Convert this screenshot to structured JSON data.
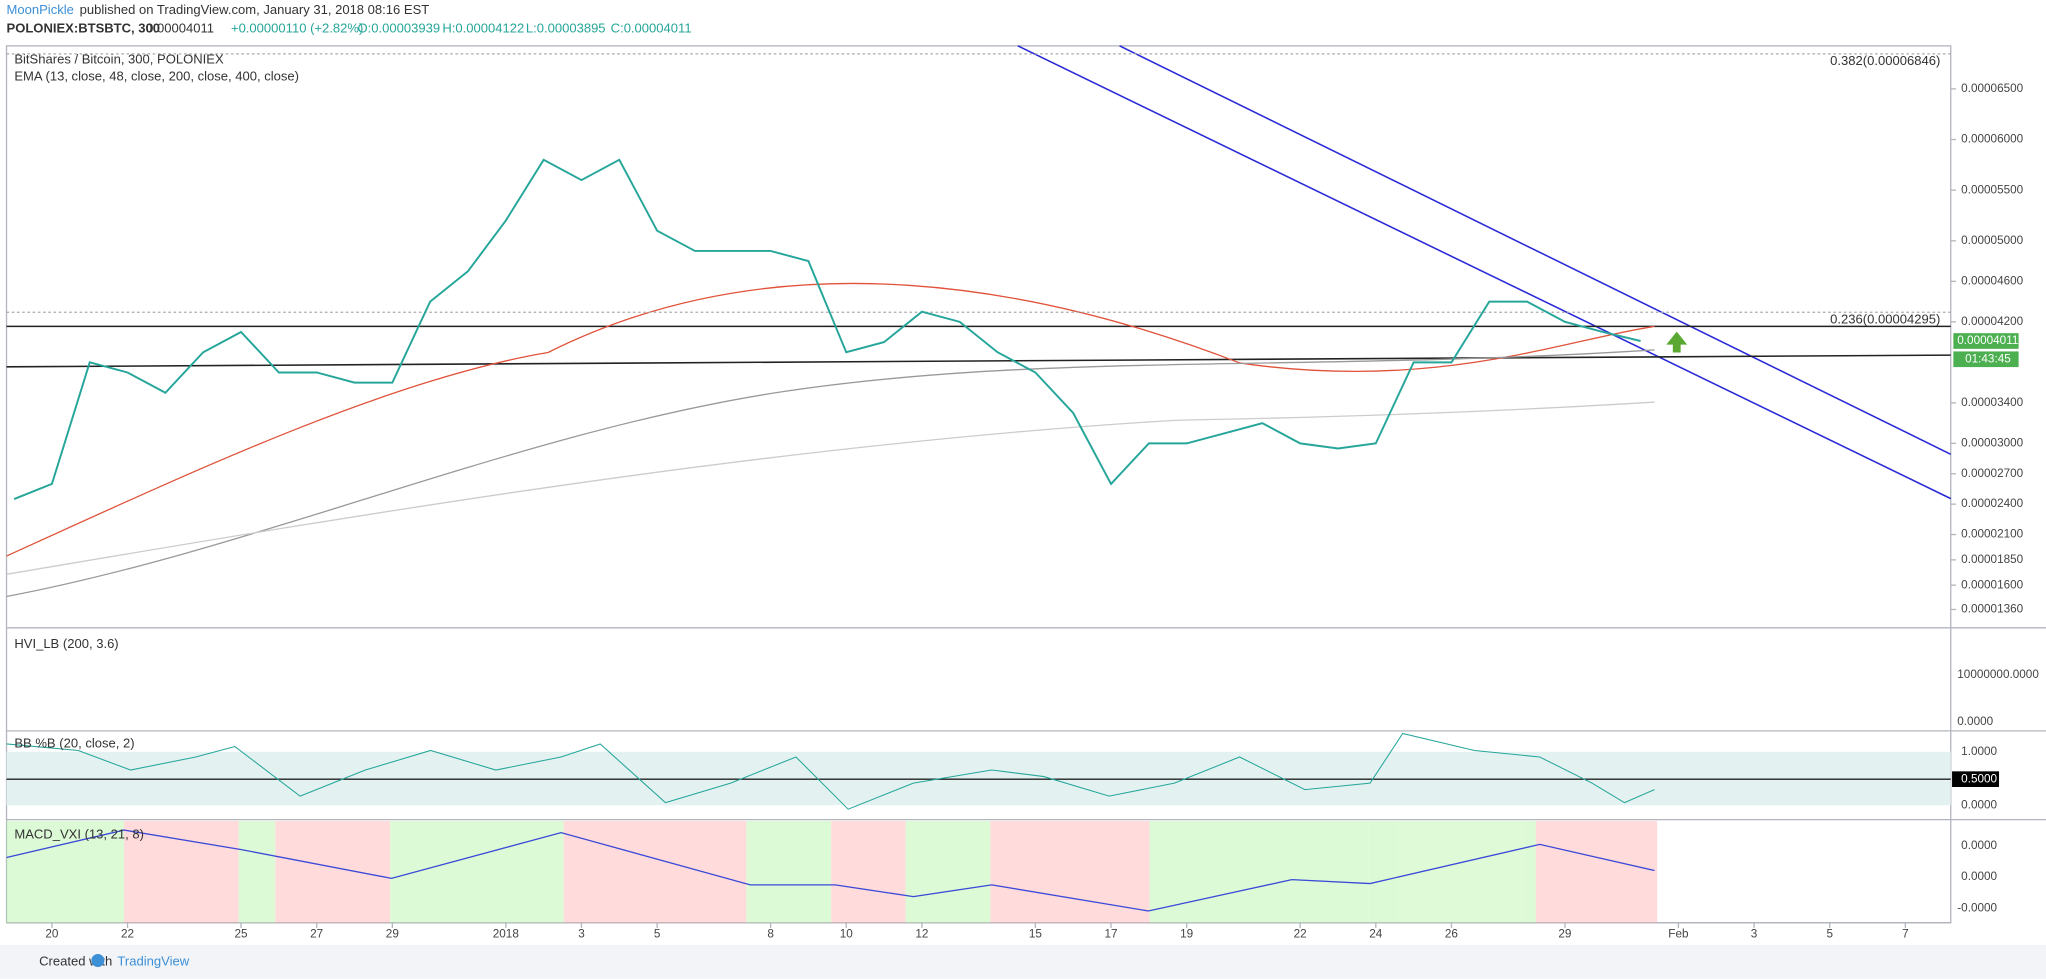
{
  "header": {
    "author": "MoonPickle",
    "published": "published on TradingView.com, January 31, 2018 08:16 EST",
    "symbol": "POLONIEX:BTSBTC, 300",
    "last": "0.00004011",
    "change": "+0.00000110 (+2.82%)",
    "open": "O:0.00003939",
    "high": "H:0.00004122",
    "low": "L:0.00003895",
    "close": "C:0.00004011"
  },
  "chart_data": {
    "type": "line",
    "title": "BitShares / Bitcoin, 300, POLONIEX",
    "subtitle": "EMA (13, close, 48, close, 200, close, 400, close)",
    "color": "#26a69a",
    "log": false,
    "grid": false,
    "x": [
      -1,
      0,
      1,
      2,
      3,
      4,
      5,
      6,
      7,
      8,
      9,
      10,
      11,
      12,
      13,
      14,
      15,
      16,
      17,
      18,
      19,
      20,
      21,
      22,
      23,
      24,
      25,
      26,
      27,
      28,
      29,
      30,
      31,
      32,
      33,
      34,
      35,
      36,
      37,
      38,
      39,
      40,
      41,
      42
    ],
    "values": [
      2.45e-05,
      2.6e-05,
      3.8e-05,
      3.7e-05,
      3.5e-05,
      3.9e-05,
      4.1e-05,
      3.7e-05,
      3.7e-05,
      3.6e-05,
      3.6e-05,
      4.4e-05,
      4.7e-05,
      5.2e-05,
      5.8e-05,
      5.6e-05,
      5.8e-05,
      5.1e-05,
      4.9e-05,
      4.9e-05,
      4.9e-05,
      4.8e-05,
      3.9e-05,
      4e-05,
      4.3e-05,
      4.2e-05,
      3.9e-05,
      3.7e-05,
      3.3e-05,
      2.6e-05,
      3e-05,
      3e-05,
      3.1e-05,
      3.2e-05,
      3e-05,
      2.95e-05,
      3e-05,
      3.8e-05,
      3.8e-05,
      4.4e-05,
      4.4e-05,
      4.2e-05,
      4.1e-05,
      4.011e-05
    ],
    "xlim": [
      -1.2,
      50.2
    ],
    "xticks": [
      {
        "value": 0,
        "label": "20"
      },
      {
        "value": 2,
        "label": "22"
      },
      {
        "value": 5,
        "label": "25"
      },
      {
        "value": 7,
        "label": "27"
      },
      {
        "value": 9,
        "label": "29"
      },
      {
        "value": 12,
        "label": "2018"
      },
      {
        "value": 14,
        "label": "3"
      },
      {
        "value": 16,
        "label": "5"
      },
      {
        "value": 19,
        "label": "8"
      },
      {
        "value": 21,
        "label": "10"
      },
      {
        "value": 23,
        "label": "12"
      },
      {
        "value": 26,
        "label": "15"
      },
      {
        "value": 28,
        "label": "17"
      },
      {
        "value": 30,
        "label": "19"
      },
      {
        "value": 33,
        "label": "22"
      },
      {
        "value": 35,
        "label": "24"
      },
      {
        "value": 37,
        "label": "26"
      },
      {
        "value": 40,
        "label": "29"
      },
      {
        "value": 43,
        "label": "Feb"
      },
      {
        "value": 45,
        "label": "3"
      },
      {
        "value": 47,
        "label": "5"
      },
      {
        "value": 49,
        "label": "7"
      }
    ],
    "ylim": [
      1.192e-05,
      6.925e-05
    ],
    "yticks": [
      {
        "value": 6.5e-05,
        "label": "0.00006500"
      },
      {
        "value": 6e-05,
        "label": "0.00006000"
      },
      {
        "value": 5.5e-05,
        "label": "0.00005500"
      },
      {
        "value": 5e-05,
        "label": "0.00005000"
      },
      {
        "value": 4.6e-05,
        "label": "0.00004600"
      },
      {
        "value": 4.2e-05,
        "label": "0.00004200"
      },
      {
        "value": 3.4e-05,
        "label": "0.00003400"
      },
      {
        "value": 3e-05,
        "label": "0.00003000"
      },
      {
        "value": 2.7e-05,
        "label": "0.00002700"
      },
      {
        "value": 2.4e-05,
        "label": "0.00002400"
      },
      {
        "value": 2.1e-05,
        "label": "0.00002100"
      },
      {
        "value": 1.85e-05,
        "label": "0.00001850"
      },
      {
        "value": 1.6e-05,
        "label": "0.00001600"
      },
      {
        "value": 1.36e-05,
        "label": "0.00001360"
      }
    ],
    "fib": [
      {
        "value": 6.846e-05,
        "label": "0.382(0.00006846)"
      },
      {
        "value": 4.295e-05,
        "label": "0.236(0.00004295)"
      }
    ],
    "price_label": {
      "value": 4.011e-05,
      "label": "0.00004011"
    },
    "countdown": "01:43:45"
  },
  "panels": {
    "volume": {
      "title": "HVI_LB (200, 3.6)",
      "ticks": [
        "10000000.0000",
        "0.0000"
      ]
    },
    "bb": {
      "title": "BB %B (20, close, 2)",
      "ticks": [
        "1.0000",
        "0.5000",
        "0.0000"
      ]
    },
    "macd": {
      "title": "MACD_VXI (13, 21, 8)",
      "ticks": [
        "0.0000",
        "0.0000",
        "-0.0000"
      ]
    }
  },
  "footer": {
    "created": "Created with",
    "brand": "TradingView"
  }
}
